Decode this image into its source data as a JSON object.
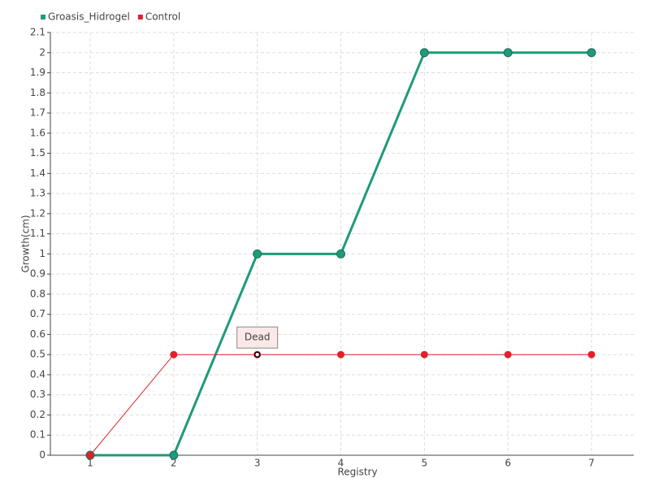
{
  "chart_data": {
    "type": "line",
    "xlabel": "Registry",
    "ylabel": "Growth(cm)",
    "categories": [
      "1",
      "2",
      "3",
      "4",
      "5",
      "6",
      "7"
    ],
    "series": [
      {
        "name": "Groasis_Hidrogel",
        "color": "#1f9a7a",
        "values": [
          0,
          0,
          1,
          1,
          2,
          2,
          2
        ]
      },
      {
        "name": "Control",
        "color": "#e0202a",
        "values": [
          0,
          0.5,
          0.5,
          0.5,
          0.5,
          0.5,
          0.5
        ]
      }
    ],
    "annotations": [
      {
        "text": "Dead",
        "series": 1,
        "index": 2
      }
    ],
    "ylim": [
      0,
      2.1
    ],
    "yticks": [
      0,
      0.1,
      0.2,
      0.3,
      0.4,
      0.5,
      0.6,
      0.7,
      0.8,
      0.9,
      1,
      1.1,
      1.2,
      1.3,
      1.4,
      1.5,
      1.6,
      1.7,
      1.8,
      1.9,
      2,
      2.1
    ],
    "grid": true,
    "legend": "top-left"
  }
}
